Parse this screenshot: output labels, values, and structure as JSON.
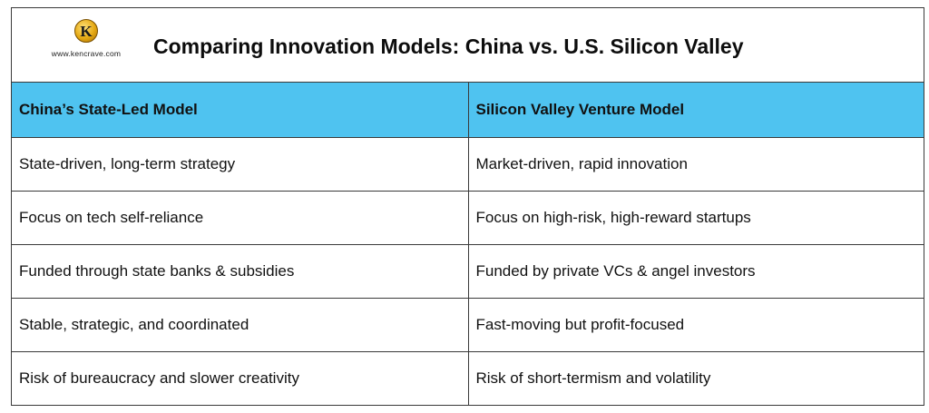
{
  "logo": {
    "letter": "K",
    "url_text": "www.kencrave.com",
    "icon": "kencrave-coin-logo-icon"
  },
  "title": "Comparing Innovation Models: China vs. U.S. Silicon Valley",
  "table": {
    "headers": [
      "China’s State-Led Model",
      "Silicon Valley Venture Model"
    ],
    "rows": [
      [
        "State-driven, long-term strategy",
        "Market-driven, rapid innovation"
      ],
      [
        "Focus on tech self-reliance",
        "Focus on high-risk, high-reward startups"
      ],
      [
        "Funded through state banks & subsidies",
        "Funded by private VCs & angel investors"
      ],
      [
        "Stable, strategic, and coordinated",
        "Fast-moving but profit-focused"
      ],
      [
        "Risk of bureaucracy and slower creativity",
        "Risk of short-termism and volatility"
      ]
    ]
  },
  "colors": {
    "header_fill": "#4fc3f0",
    "border": "#3a3a3a",
    "text": "#111111"
  }
}
